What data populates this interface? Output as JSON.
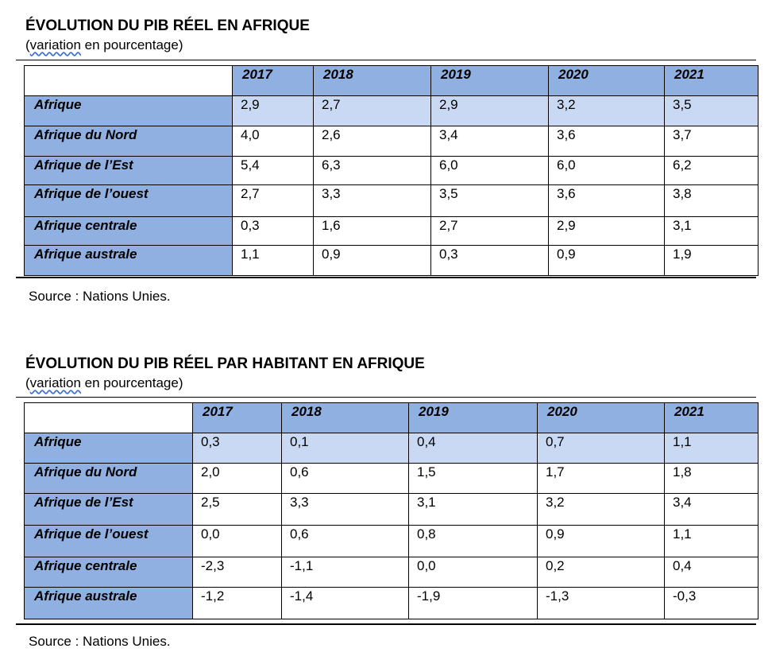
{
  "table1": {
    "title": "ÉVOLUTION DU PIB RÉEL EN AFRIQUE",
    "subtitle_word": "variation",
    "subtitle_rest": " en pourcentage)",
    "subtitle_open": "(",
    "years": [
      "2017",
      "2018",
      "2019",
      "2020",
      "2021"
    ],
    "rows": [
      {
        "region": "Afrique",
        "values": [
          "2,9",
          "2,7",
          "2,9",
          "3,2",
          "3,5"
        ]
      },
      {
        "region": "Afrique du Nord",
        "values": [
          "4,0",
          "2,6",
          "3,4",
          "3,6",
          "3,7"
        ]
      },
      {
        "region": "Afrique de l’Est",
        "values": [
          "5,4",
          "6,3",
          "6,0",
          "6,0",
          "6,2"
        ]
      },
      {
        "region": "Afrique de l’ouest",
        "values": [
          "2,7",
          "3,3",
          "3,5",
          "3,6",
          "3,8"
        ]
      },
      {
        "region": "Afrique centrale",
        "values": [
          "0,3",
          "1,6",
          "2,7",
          "2,9",
          "3,1"
        ]
      },
      {
        "region": "Afrique australe",
        "values": [
          "1,1",
          "0,9",
          "0,3",
          "0,9",
          "1,9"
        ]
      }
    ],
    "source": "Source : Nations Unies."
  },
  "table2": {
    "title": "ÉVOLUTION DU PIB RÉEL PAR HABITANT EN AFRIQUE",
    "subtitle_word": "variation",
    "subtitle_rest": " en pourcentage)",
    "subtitle_open": "(",
    "years": [
      "2017",
      "2018",
      "2019",
      "2020",
      "2021"
    ],
    "rows": [
      {
        "region": "Afrique",
        "values": [
          "0,3",
          "0,1",
          "0,4",
          "0,7",
          "1,1"
        ]
      },
      {
        "region": "Afrique du Nord",
        "values": [
          "2,0",
          "0,6",
          "1,5",
          "1,7",
          "1,8"
        ]
      },
      {
        "region": "Afrique de l’Est",
        "values": [
          "2,5",
          "3,3",
          "3,1",
          "3,2",
          "3,4"
        ]
      },
      {
        "region": "Afrique de l’ouest",
        "values": [
          "0,0",
          "0,6",
          "0,8",
          "0,9",
          "1,1"
        ]
      },
      {
        "region": "Afrique centrale",
        "values": [
          "-2,3",
          "-1,1",
          "0,0",
          "0,2",
          "0,4"
        ]
      },
      {
        "region": "Afrique australe",
        "values": [
          "-1,2",
          "-1,4",
          "-1,9",
          "-1,3",
          "-0,3"
        ]
      }
    ],
    "source": "Source : Nations Unies."
  }
}
